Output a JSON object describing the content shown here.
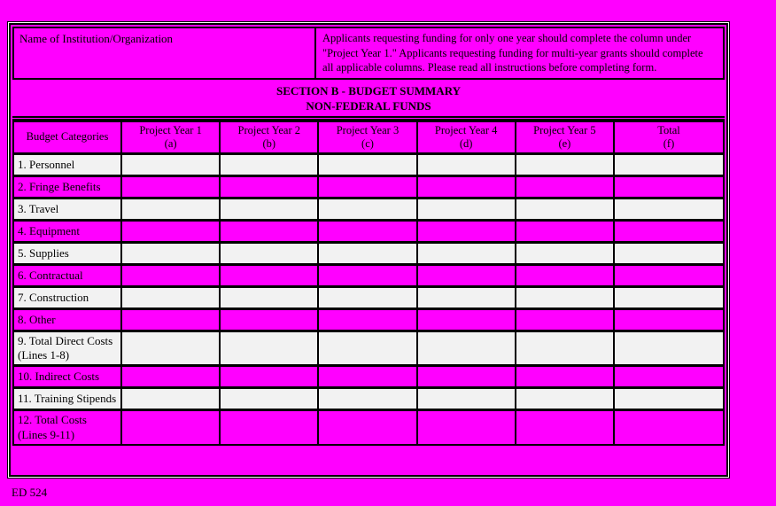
{
  "colors": {
    "background": "#ff00ff",
    "row_light": "#f2f2f2",
    "row_magenta": "#ff00ff",
    "border": "#000000"
  },
  "info": {
    "institution_label": "Name of Institution/Organization",
    "instructions": "Applicants requesting funding for only one year should complete the column under \"Project Year 1.\"  Applicants requesting funding for multi-year grants should complete all applicable columns.  Please read all instructions before completing form."
  },
  "section_header": {
    "line1": "SECTION B - BUDGET SUMMARY",
    "line2": "NON-FEDERAL FUNDS"
  },
  "table": {
    "columns": [
      {
        "label": "Budget Categories",
        "sub": ""
      },
      {
        "label": "Project Year 1",
        "sub": "(a)"
      },
      {
        "label": "Project Year 2",
        "sub": "(b)"
      },
      {
        "label": "Project Year 3",
        "sub": "(c)"
      },
      {
        "label": "Project Year 4",
        "sub": "(d)"
      },
      {
        "label": "Project Year 5",
        "sub": "(e)"
      },
      {
        "label": "Total",
        "sub": "(f)"
      }
    ],
    "rows": [
      {
        "label": "1. Personnel",
        "values": [
          "",
          "",
          "",
          "",
          "",
          ""
        ]
      },
      {
        "label": "2. Fringe Benefits",
        "values": [
          "",
          "",
          "",
          "",
          "",
          ""
        ]
      },
      {
        "label": "3. Travel",
        "values": [
          "",
          "",
          "",
          "",
          "",
          ""
        ]
      },
      {
        "label": "4. Equipment",
        "values": [
          "",
          "",
          "",
          "",
          "",
          ""
        ]
      },
      {
        "label": "5. Supplies",
        "values": [
          "",
          "",
          "",
          "",
          "",
          ""
        ]
      },
      {
        "label": "6. Contractual",
        "values": [
          "",
          "",
          "",
          "",
          "",
          ""
        ]
      },
      {
        "label": "7. Construction",
        "values": [
          "",
          "",
          "",
          "",
          "",
          ""
        ]
      },
      {
        "label": "8. Other",
        "values": [
          "",
          "",
          "",
          "",
          "",
          ""
        ]
      },
      {
        "label": "9. Total Direct Costs\n(Lines 1-8)",
        "values": [
          "",
          "",
          "",
          "",
          "",
          ""
        ]
      },
      {
        "label": "10. Indirect Costs",
        "values": [
          "",
          "",
          "",
          "",
          "",
          ""
        ]
      },
      {
        "label": "11. Training Stipends",
        "values": [
          "",
          "",
          "",
          "",
          "",
          ""
        ]
      },
      {
        "label": "12. Total Costs\n(Lines 9-11)",
        "values": [
          "",
          "",
          "",
          "",
          "",
          ""
        ]
      }
    ]
  },
  "footer": {
    "form_number": "ED 524"
  }
}
